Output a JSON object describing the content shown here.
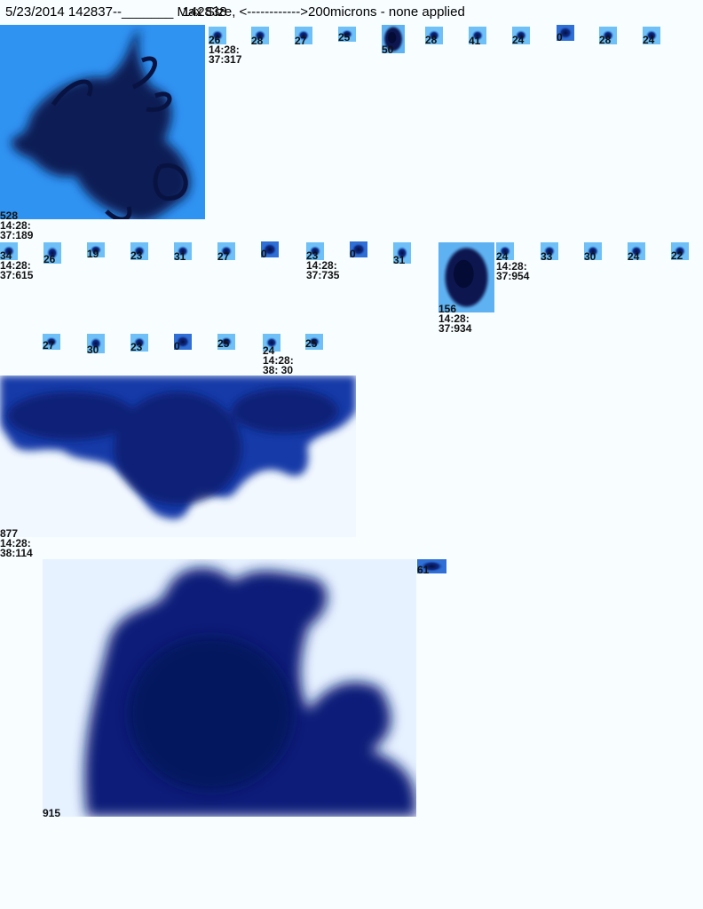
{
  "header": {
    "prefix": "5/23/2014 142837--_______ ",
    "overlap_a": "Max Size,",
    "overlap_b": "142838",
    "suffix": " <------------>200microns - none applied"
  },
  "particles": [
    {
      "id": "p1",
      "size": "528",
      "time": "14:28:\n37:189"
    },
    {
      "id": "p2",
      "size": "26",
      "time": "14:28:\n37:317"
    },
    {
      "id": "p3",
      "size": "28"
    },
    {
      "id": "p4",
      "size": "27"
    },
    {
      "id": "p5",
      "size": "25"
    },
    {
      "id": "p6",
      "size": "50"
    },
    {
      "id": "p7",
      "size": "28"
    },
    {
      "id": "p8",
      "size": "41"
    },
    {
      "id": "p9",
      "size": "24"
    },
    {
      "id": "p10",
      "size": "0"
    },
    {
      "id": "p11",
      "size": "28"
    },
    {
      "id": "p12",
      "size": "24"
    },
    {
      "id": "p13",
      "size": "34",
      "time": "14:28:\n37:615"
    },
    {
      "id": "p14",
      "size": "26"
    },
    {
      "id": "p15",
      "size": "19"
    },
    {
      "id": "p16",
      "size": "23"
    },
    {
      "id": "p17",
      "size": "31"
    },
    {
      "id": "p18",
      "size": "27"
    },
    {
      "id": "p19",
      "size": "0"
    },
    {
      "id": "p20",
      "size": "23",
      "time": "14:28:\n37:735"
    },
    {
      "id": "p21",
      "size": "0"
    },
    {
      "id": "p22",
      "size": "31"
    },
    {
      "id": "p23",
      "size": "156",
      "time": "14:28:\n37:934"
    },
    {
      "id": "p24",
      "size": "24",
      "time": "14:28:\n37:954"
    },
    {
      "id": "p25",
      "size": "33"
    },
    {
      "id": "p26",
      "size": "30"
    },
    {
      "id": "p27",
      "size": "24"
    },
    {
      "id": "p28",
      "size": "22"
    },
    {
      "id": "p29",
      "size": "27"
    },
    {
      "id": "p30",
      "size": "30"
    },
    {
      "id": "p31",
      "size": "23"
    },
    {
      "id": "p32",
      "size": "0"
    },
    {
      "id": "p33",
      "size": "25"
    },
    {
      "id": "p34",
      "size": "24",
      "time": "14:28:\n38: 30"
    },
    {
      "id": "p35",
      "size": "25"
    },
    {
      "id": "p36",
      "size": "877",
      "time": "14:28:\n38:114"
    },
    {
      "id": "p37",
      "size": "915"
    },
    {
      "id": "p38",
      "size": "61"
    }
  ]
}
